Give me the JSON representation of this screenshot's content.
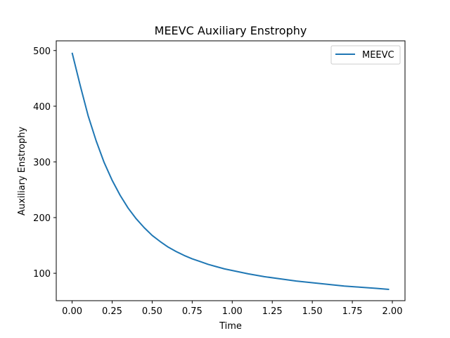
{
  "chart_data": {
    "type": "line",
    "title": "MEEVC Auxiliary Enstrophy",
    "xlabel": "Time",
    "ylabel": "Auxiliary Enstrophy",
    "xlim": [
      -0.099,
      2.079
    ],
    "ylim": [
      50.8,
      517.4
    ],
    "xticks": [
      0.0,
      0.25,
      0.5,
      0.75,
      1.0,
      1.25,
      1.5,
      1.75,
      2.0
    ],
    "xtick_labels": [
      "0.00",
      "0.25",
      "0.50",
      "0.75",
      "1.00",
      "1.25",
      "1.50",
      "1.75",
      "2.00"
    ],
    "yticks": [
      100,
      200,
      300,
      400,
      500
    ],
    "ytick_labels": [
      "100",
      "200",
      "300",
      "400",
      "500"
    ],
    "grid": false,
    "legend_position": "top-right",
    "series": [
      {
        "name": "MEEVC",
        "color": "#1f77b4",
        "x": [
          0.0,
          0.05,
          0.1,
          0.15,
          0.2,
          0.25,
          0.3,
          0.35,
          0.4,
          0.45,
          0.5,
          0.55,
          0.6,
          0.65,
          0.7,
          0.75,
          0.8,
          0.85,
          0.9,
          0.95,
          1.0,
          1.1,
          1.2,
          1.3,
          1.4,
          1.5,
          1.6,
          1.7,
          1.8,
          1.9,
          1.98
        ],
        "y": [
          496,
          438,
          383,
          338,
          299,
          267,
          240,
          217,
          198,
          182,
          168,
          157,
          147,
          139,
          132,
          126,
          121,
          116,
          112,
          108,
          105,
          99,
          94,
          90,
          86,
          83,
          80,
          77,
          75,
          73,
          71
        ]
      }
    ]
  }
}
